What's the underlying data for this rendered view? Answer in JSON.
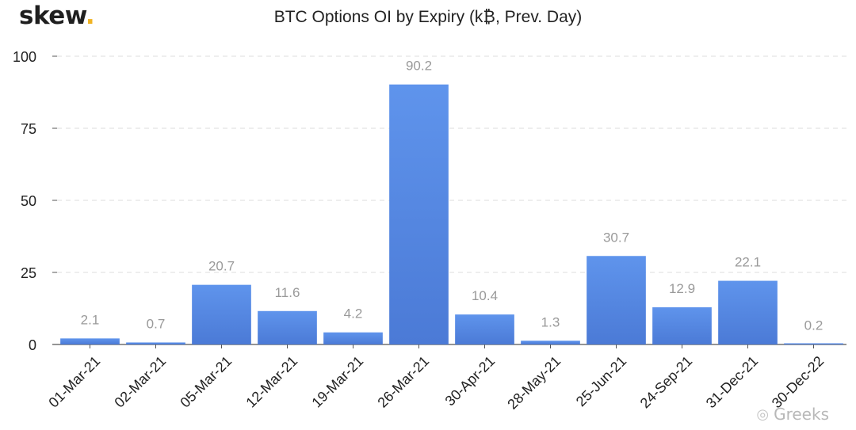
{
  "brand": {
    "name": "skew",
    "dot": "."
  },
  "watermark": {
    "text": "Greeks",
    "icon": "wechat-icon"
  },
  "colors": {
    "bar": "#5b8fe6",
    "bar_dark": "#4a7bd8",
    "label": "#9a9a9a",
    "grid": "#dcdcdc",
    "axis": "#555555"
  },
  "chart_data": {
    "type": "bar",
    "title": "BTC Options OI by Expiry (k₿, Prev. Day)",
    "xlabel": "",
    "ylabel": "",
    "categories": [
      "01-Mar-21",
      "02-Mar-21",
      "05-Mar-21",
      "12-Mar-21",
      "19-Mar-21",
      "26-Mar-21",
      "30-Apr-21",
      "28-May-21",
      "25-Jun-21",
      "24-Sep-21",
      "31-Dec-21",
      "30-Dec-22"
    ],
    "values": [
      2.1,
      0.7,
      20.7,
      11.6,
      4.2,
      90.2,
      10.4,
      1.3,
      30.7,
      12.9,
      22.1,
      0.2
    ],
    "value_labels": [
      "2.1",
      "0.7",
      "20.7",
      "11.6",
      "4.2",
      "90.2",
      "10.4",
      "1.3",
      "30.7",
      "12.9",
      "22.1",
      "0.2"
    ],
    "ylim": [
      0,
      100
    ],
    "yticks": [
      0,
      25,
      50,
      75,
      100
    ],
    "ytick_labels": [
      "0",
      "25",
      "50",
      "75",
      "100"
    ],
    "grid": true,
    "legend": "none"
  }
}
